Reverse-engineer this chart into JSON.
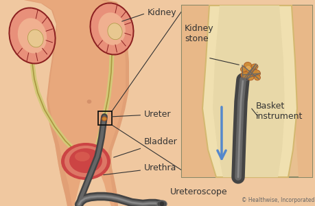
{
  "copyright": "© Healthwise, Incorporated",
  "bg_color": "#f0c8a0",
  "body_color": "#e8a87c",
  "body_shadow": "#d4906a",
  "body_light": "#f5d0b0",
  "kidney_outer": "#8b2020",
  "kidney_mid": "#e8907a",
  "kidney_inner": "#f0b090",
  "kidney_pelvis": "#e8c890",
  "ureter_color": "#d4c878",
  "ureter_outline": "#a89840",
  "bladder_outer": "#cc4444",
  "bladder_mid": "#dd7766",
  "bladder_inner": "#cc5544",
  "scope_dark": "#444444",
  "scope_mid": "#666666",
  "scope_light": "#888888",
  "arrow_color": "#5588cc",
  "line_color": "#333333",
  "label_color": "#111111",
  "inset_bg": "#e8c090",
  "inset_ureter_fill": "#f0e0b0",
  "inset_ureter_wall": "#d4b870",
  "inset_tissue": "#e8b888",
  "stone_color": "#cc8833",
  "stone_dark": "#aa5522",
  "stone_light": "#eebb66",
  "basket_wire": "#666666",
  "font_size": 9,
  "labels": {
    "kidney": "Kidney",
    "ureter": "Ureter",
    "bladder": "Bladder",
    "urethra": "Urethra",
    "ureteroscope": "Ureteroscope",
    "kidney_stone": "Kidney\nstone",
    "basket_instrument": "Basket\ninstrument"
  }
}
